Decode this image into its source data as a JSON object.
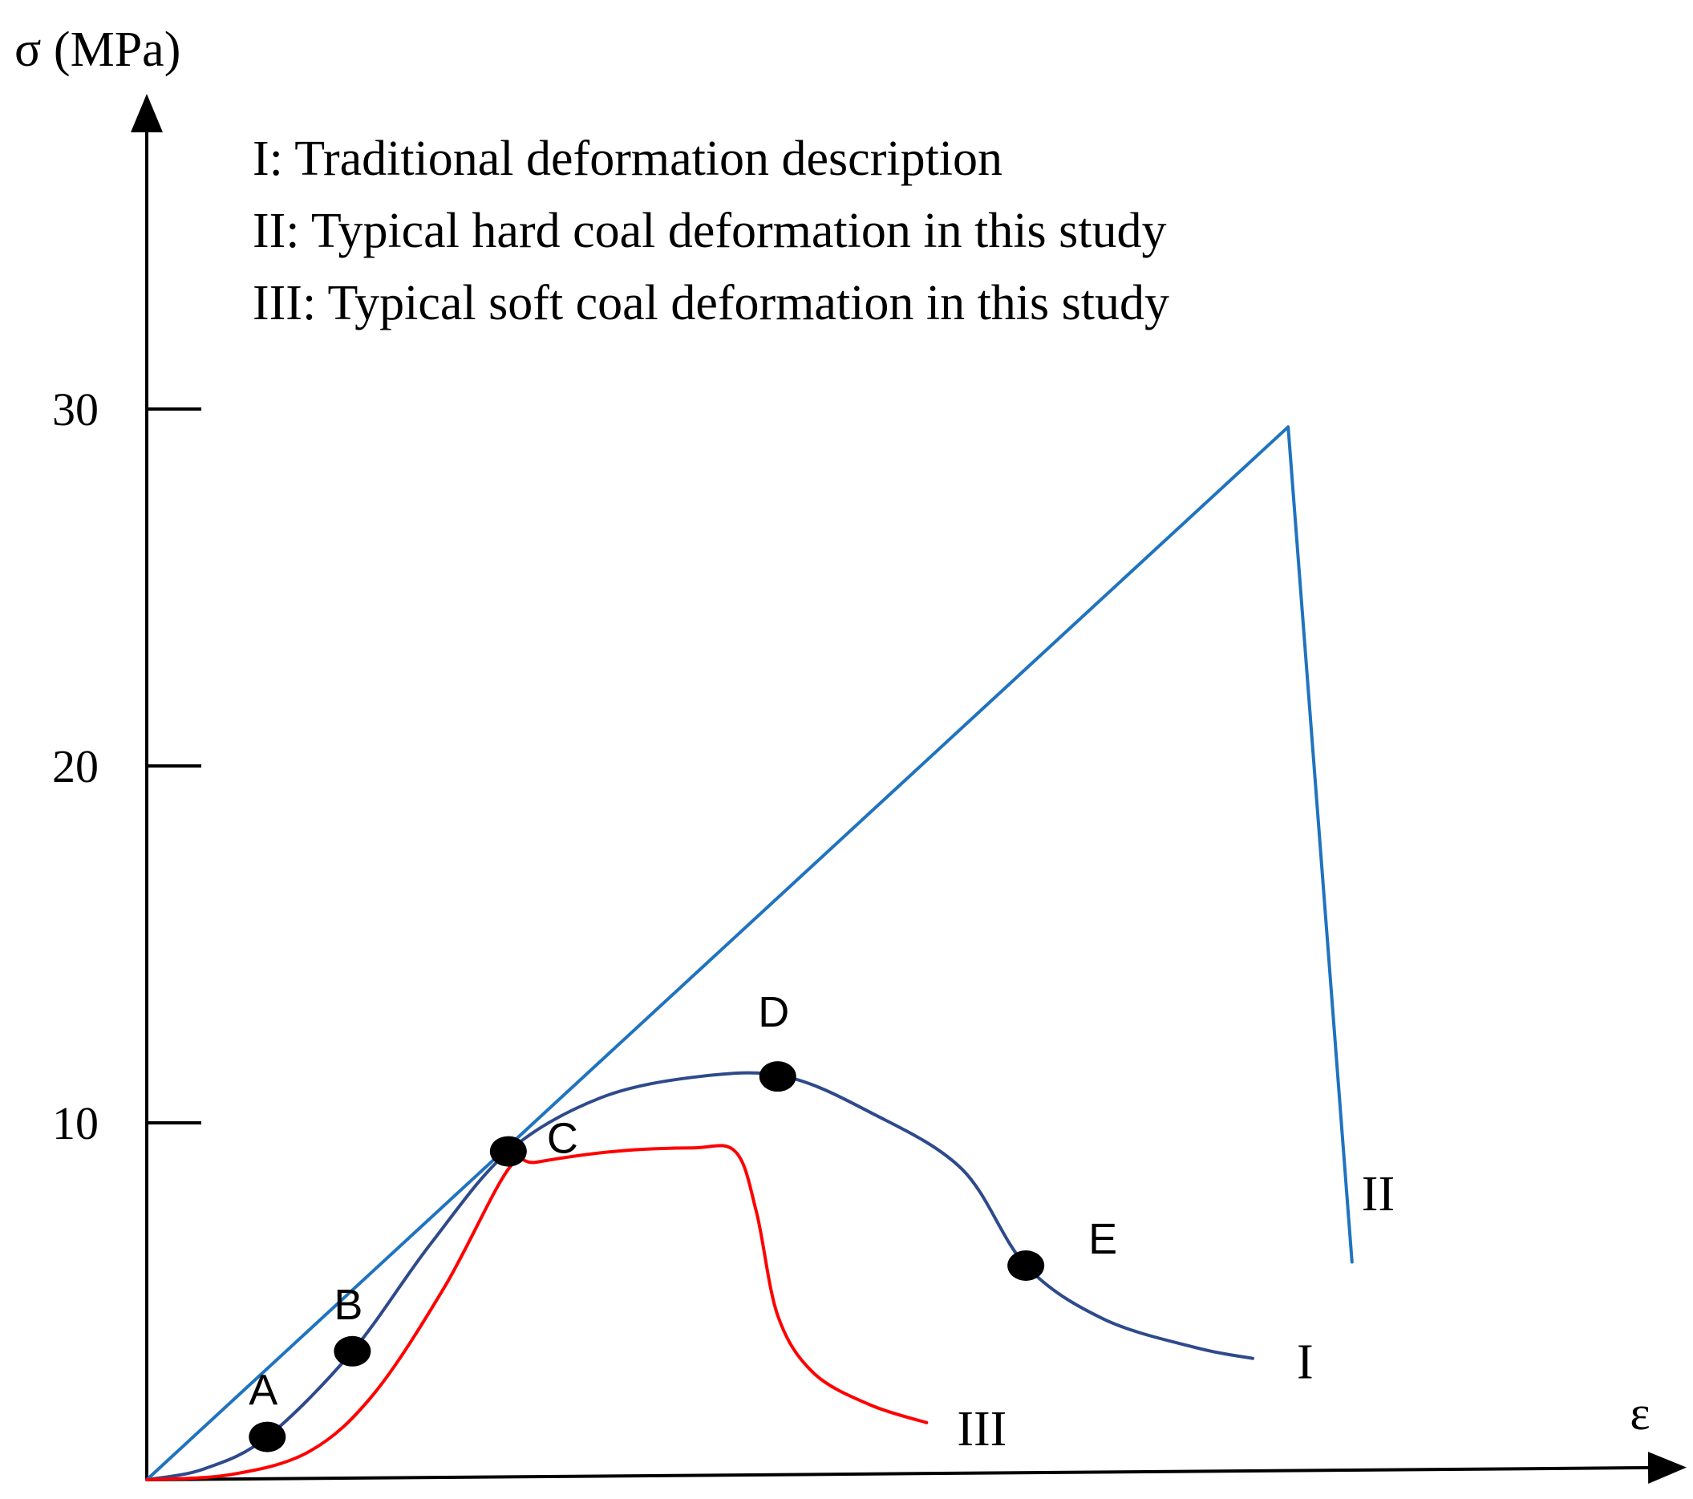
{
  "chart_data": {
    "type": "line",
    "title": "",
    "ylabel": "σ (MPa)",
    "xlabel": "ε",
    "ylim": [
      0,
      38
    ],
    "xlim": [
      0,
      21
    ],
    "y_ticks": [
      {
        "value": 10,
        "label": "10"
      },
      {
        "value": 20,
        "label": "20"
      },
      {
        "value": 30,
        "label": "30"
      }
    ],
    "legend": [
      "I: Traditional deformation description",
      "II: Typical hard coal deformation in this study",
      "III: Typical soft coal deformation in this study"
    ],
    "series": [
      {
        "name": "I",
        "label": "I",
        "color": "#2e4a8c",
        "smooth": true,
        "points": [
          [
            0,
            0
          ],
          [
            0.8,
            0.3
          ],
          [
            1.7,
            1.2
          ],
          [
            2.9,
            3.6
          ],
          [
            4.0,
            6.6
          ],
          [
            5.1,
            9.2
          ],
          [
            6.4,
            10.7
          ],
          [
            7.8,
            11.3
          ],
          [
            9.0,
            11.3
          ],
          [
            10.2,
            10.3
          ],
          [
            11.5,
            8.7
          ],
          [
            12.4,
            6.0
          ],
          [
            13.5,
            4.5
          ],
          [
            14.8,
            3.7
          ],
          [
            15.6,
            3.4
          ]
        ],
        "label_anchor": [
          15.6,
          3.4
        ]
      },
      {
        "name": "II",
        "label": "II",
        "color": "#1f73bf",
        "smooth": false,
        "points": [
          [
            0,
            0
          ],
          [
            16.1,
            29.5
          ],
          [
            17.0,
            6.1
          ]
        ],
        "label_anchor": [
          17.0,
          8.0
        ]
      },
      {
        "name": "III",
        "label": "III",
        "color": "#ff0000",
        "smooth": true,
        "points": [
          [
            0,
            0
          ],
          [
            1.2,
            0.15
          ],
          [
            2.3,
            0.8
          ],
          [
            3.2,
            2.4
          ],
          [
            4.2,
            5.4
          ],
          [
            5.1,
            8.7
          ],
          [
            5.5,
            8.9
          ],
          [
            6.6,
            9.2
          ],
          [
            7.7,
            9.3
          ],
          [
            8.3,
            9.2
          ],
          [
            8.6,
            7.5
          ],
          [
            8.9,
            4.6
          ],
          [
            9.4,
            3.0
          ],
          [
            10.2,
            2.1
          ],
          [
            11.0,
            1.6
          ]
        ],
        "label_anchor": [
          11.0,
          1.6
        ]
      }
    ],
    "annotations": [
      {
        "label": "A",
        "x": 1.7,
        "y": 1.2,
        "label_pos": "above"
      },
      {
        "label": "B",
        "x": 2.9,
        "y": 3.6,
        "label_pos": "above"
      },
      {
        "label": "C",
        "x": 5.1,
        "y": 9.2,
        "label_pos": "right"
      },
      {
        "label": "D",
        "x": 8.9,
        "y": 11.3,
        "label_pos": "above"
      },
      {
        "label": "E",
        "x": 12.4,
        "y": 6.0,
        "label_pos": "right"
      }
    ]
  }
}
